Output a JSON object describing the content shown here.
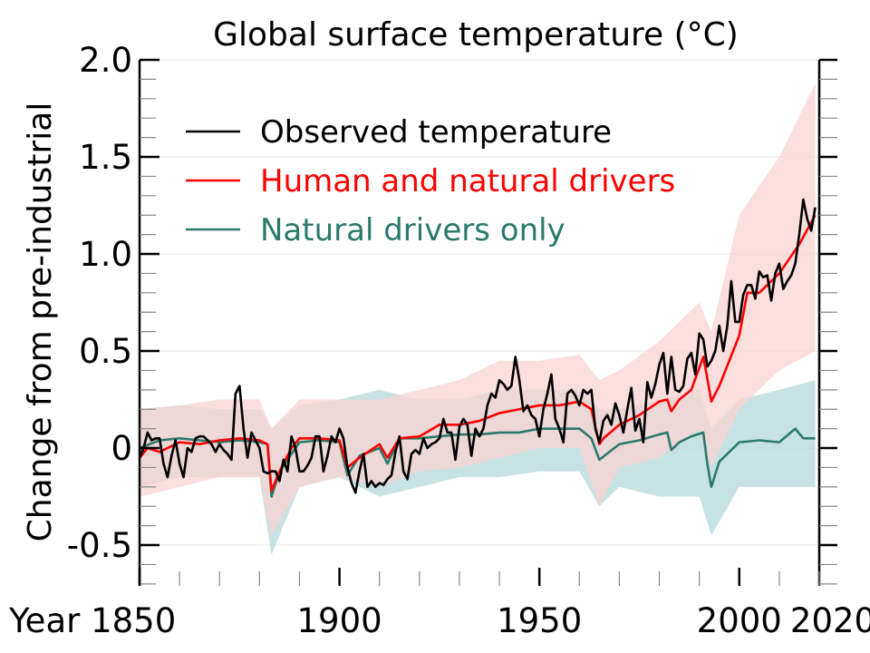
{
  "chart_data": {
    "type": "line",
    "title": "Global surface temperature (°C)",
    "xlabel": "",
    "ylabel": "Change from pre-industrial",
    "xlim": [
      1850,
      2020
    ],
    "ylim": [
      -0.71,
      2.0
    ],
    "x_tick_labels": [
      {
        "value": 1850,
        "label": "Year 1850"
      },
      {
        "value": 1900,
        "label": "1900"
      },
      {
        "value": 1950,
        "label": "1950"
      },
      {
        "value": 2000,
        "label": "2000"
      },
      {
        "value": 2020,
        "label": "2020"
      }
    ],
    "y_tick_labels": [
      {
        "value": 2.0,
        "label": "2.0"
      },
      {
        "value": 1.5,
        "label": "1.5"
      },
      {
        "value": 1.0,
        "label": "1.0"
      },
      {
        "value": 0.5,
        "label": "0.5"
      },
      {
        "value": 0,
        "label": "0"
      },
      {
        "value": -0.5,
        "label": "-0.5"
      }
    ],
    "grid": "horizontal at major y ticks",
    "legend_position": "top-left",
    "series": [
      {
        "name": "Observed temperature",
        "color": "#000000",
        "x": [
          1850,
          1851,
          1852,
          1853,
          1854,
          1855,
          1856,
          1857,
          1858,
          1859,
          1860,
          1861,
          1862,
          1863,
          1864,
          1865,
          1866,
          1867,
          1868,
          1869,
          1870,
          1871,
          1872,
          1873,
          1874,
          1875,
          1876,
          1877,
          1878,
          1879,
          1880,
          1881,
          1882,
          1883,
          1884,
          1885,
          1886,
          1887,
          1888,
          1889,
          1890,
          1891,
          1892,
          1893,
          1894,
          1895,
          1896,
          1897,
          1898,
          1899,
          1900,
          1901,
          1902,
          1903,
          1904,
          1905,
          1906,
          1907,
          1908,
          1909,
          1910,
          1911,
          1912,
          1913,
          1914,
          1915,
          1916,
          1917,
          1918,
          1919,
          1920,
          1921,
          1922,
          1923,
          1924,
          1925,
          1926,
          1927,
          1928,
          1929,
          1930,
          1931,
          1932,
          1933,
          1934,
          1935,
          1936,
          1937,
          1938,
          1939,
          1940,
          1941,
          1942,
          1943,
          1944,
          1945,
          1946,
          1947,
          1948,
          1949,
          1950,
          1951,
          1952,
          1953,
          1954,
          1955,
          1956,
          1957,
          1958,
          1959,
          1960,
          1961,
          1962,
          1963,
          1964,
          1965,
          1966,
          1967,
          1968,
          1969,
          1970,
          1971,
          1972,
          1973,
          1974,
          1975,
          1976,
          1977,
          1978,
          1979,
          1980,
          1981,
          1982,
          1983,
          1984,
          1985,
          1986,
          1987,
          1988,
          1989,
          1990,
          1991,
          1992,
          1993,
          1994,
          1995,
          1996,
          1997,
          1998,
          1999,
          2000,
          2001,
          2002,
          2003,
          2004,
          2005,
          2006,
          2007,
          2008,
          2009,
          2010,
          2011,
          2012,
          2013,
          2014,
          2015,
          2016,
          2017,
          2018,
          2019
        ],
        "values": [
          -0.05,
          0.0,
          0.08,
          0.04,
          0.05,
          0.05,
          -0.08,
          -0.15,
          -0.04,
          0.04,
          -0.08,
          -0.15,
          0.0,
          -0.02,
          0.05,
          0.06,
          0.06,
          0.04,
          0.02,
          -0.02,
          0.02,
          -0.01,
          -0.03,
          -0.06,
          0.28,
          0.32,
          0.1,
          -0.05,
          0.08,
          0.04,
          0.0,
          -0.12,
          -0.13,
          -0.12,
          -0.12,
          -0.17,
          -0.06,
          -0.12,
          0.06,
          0.0,
          -0.12,
          -0.12,
          -0.09,
          -0.05,
          0.06,
          0.06,
          -0.12,
          -0.04,
          0.06,
          0.03,
          0.1,
          0.05,
          -0.1,
          -0.18,
          -0.23,
          -0.12,
          -0.03,
          -0.2,
          -0.17,
          -0.2,
          -0.18,
          -0.19,
          -0.16,
          -0.14,
          -0.02,
          0.06,
          -0.12,
          -0.16,
          -0.03,
          -0.01,
          -0.03,
          0.05,
          0.0,
          0.02,
          0.03,
          0.05,
          0.15,
          0.08,
          0.08,
          -0.06,
          0.11,
          0.15,
          0.12,
          -0.04,
          0.1,
          0.06,
          0.1,
          0.22,
          0.28,
          0.26,
          0.35,
          0.33,
          0.3,
          0.32,
          0.47,
          0.35,
          0.19,
          0.22,
          0.17,
          0.15,
          0.06,
          0.2,
          0.28,
          0.38,
          0.15,
          0.1,
          0.03,
          0.28,
          0.3,
          0.27,
          0.22,
          0.3,
          0.28,
          0.3,
          0.1,
          0.03,
          0.14,
          0.17,
          0.12,
          0.23,
          0.17,
          0.08,
          0.2,
          0.31,
          0.09,
          0.15,
          0.03,
          0.34,
          0.26,
          0.33,
          0.43,
          0.49,
          0.28,
          0.47,
          0.3,
          0.29,
          0.32,
          0.46,
          0.49,
          0.38,
          0.59,
          0.56,
          0.42,
          0.45,
          0.5,
          0.63,
          0.5,
          0.63,
          0.86,
          0.65,
          0.65,
          0.79,
          0.84,
          0.84,
          0.77,
          0.91,
          0.88,
          0.89,
          0.76,
          0.9,
          0.95,
          0.82,
          0.86,
          0.89,
          0.95,
          1.1,
          1.28,
          1.18,
          1.12,
          1.24
        ]
      },
      {
        "name": "Human and natural drivers",
        "color": "#ff0000",
        "band_color": "#f9d3d3",
        "x": [
          1850,
          1852,
          1855,
          1860,
          1865,
          1870,
          1875,
          1880,
          1882,
          1883,
          1885,
          1888,
          1890,
          1895,
          1900,
          1902,
          1905,
          1910,
          1912,
          1915,
          1920,
          1925,
          1930,
          1935,
          1940,
          1945,
          1950,
          1955,
          1960,
          1963,
          1965,
          1966,
          1970,
          1975,
          1980,
          1982,
          1983,
          1985,
          1988,
          1991,
          1992,
          1993,
          1995,
          2000,
          2002,
          2005,
          2010,
          2015,
          2019
        ],
        "values": [
          -0.05,
          0.0,
          -0.02,
          0.03,
          0.02,
          0.04,
          0.05,
          0.04,
          0.02,
          -0.22,
          -0.12,
          0.0,
          0.05,
          0.05,
          0.04,
          -0.1,
          -0.05,
          0.02,
          -0.05,
          0.05,
          0.06,
          0.12,
          0.12,
          0.14,
          0.18,
          0.2,
          0.22,
          0.22,
          0.24,
          0.2,
          0.02,
          0.05,
          0.12,
          0.17,
          0.24,
          0.25,
          0.19,
          0.25,
          0.3,
          0.47,
          0.36,
          0.24,
          0.32,
          0.58,
          0.8,
          0.8,
          0.9,
          1.05,
          1.2
        ],
        "band": {
          "x": [
            1850,
            1860,
            1870,
            1880,
            1883,
            1890,
            1900,
            1910,
            1920,
            1930,
            1940,
            1950,
            1960,
            1965,
            1970,
            1980,
            1990,
            1993,
            2000,
            2010,
            2019
          ],
          "lower": [
            -0.25,
            -0.2,
            -0.15,
            -0.15,
            -0.45,
            -0.2,
            -0.15,
            -0.2,
            -0.12,
            -0.1,
            -0.05,
            0.0,
            0.0,
            -0.3,
            -0.1,
            -0.05,
            0.1,
            -0.1,
            0.2,
            0.4,
            0.5
          ],
          "upper": [
            0.2,
            0.22,
            0.25,
            0.25,
            0.1,
            0.25,
            0.25,
            0.25,
            0.3,
            0.35,
            0.45,
            0.45,
            0.48,
            0.35,
            0.4,
            0.55,
            0.75,
            0.6,
            1.2,
            1.5,
            1.88
          ]
        }
      },
      {
        "name": "Natural drivers only",
        "color": "#2a7a6c",
        "band_color": "#a9d2d2",
        "x": [
          1850,
          1855,
          1860,
          1865,
          1870,
          1875,
          1880,
          1882,
          1883,
          1885,
          1890,
          1895,
          1900,
          1902,
          1905,
          1910,
          1912,
          1915,
          1920,
          1925,
          1930,
          1935,
          1940,
          1945,
          1950,
          1955,
          1960,
          1963,
          1965,
          1970,
          1975,
          1980,
          1982,
          1983,
          1985,
          1988,
          1991,
          1992,
          1993,
          1995,
          2000,
          2005,
          2010,
          2014,
          2016,
          2019
        ],
        "values": [
          0.0,
          0.04,
          0.05,
          0.04,
          0.03,
          0.04,
          0.03,
          0.02,
          -0.25,
          -0.12,
          0.03,
          0.04,
          0.03,
          -0.14,
          -0.04,
          0.0,
          -0.08,
          0.05,
          0.05,
          0.06,
          0.07,
          0.07,
          0.08,
          0.08,
          0.1,
          0.1,
          0.1,
          0.05,
          -0.06,
          0.02,
          0.04,
          0.07,
          0.08,
          -0.01,
          0.03,
          0.06,
          0.08,
          -0.08,
          -0.2,
          -0.07,
          0.03,
          0.04,
          0.03,
          0.1,
          0.05,
          0.05
        ],
        "band": {
          "x": [
            1850,
            1860,
            1870,
            1880,
            1883,
            1890,
            1900,
            1910,
            1920,
            1930,
            1940,
            1950,
            1960,
            1965,
            1970,
            1980,
            1990,
            1993,
            2000,
            2010,
            2019
          ],
          "lower": [
            -0.2,
            -0.15,
            -0.15,
            -0.15,
            -0.55,
            -0.2,
            -0.15,
            -0.25,
            -0.2,
            -0.15,
            -0.15,
            -0.12,
            -0.12,
            -0.3,
            -0.2,
            -0.25,
            -0.25,
            -0.45,
            -0.2,
            -0.2,
            -0.2
          ],
          "upper": [
            0.2,
            0.22,
            0.2,
            0.2,
            0.1,
            0.22,
            0.25,
            0.3,
            0.25,
            0.25,
            0.3,
            0.3,
            0.3,
            0.2,
            0.2,
            0.25,
            0.3,
            0.1,
            0.25,
            0.3,
            0.35
          ]
        }
      }
    ]
  }
}
